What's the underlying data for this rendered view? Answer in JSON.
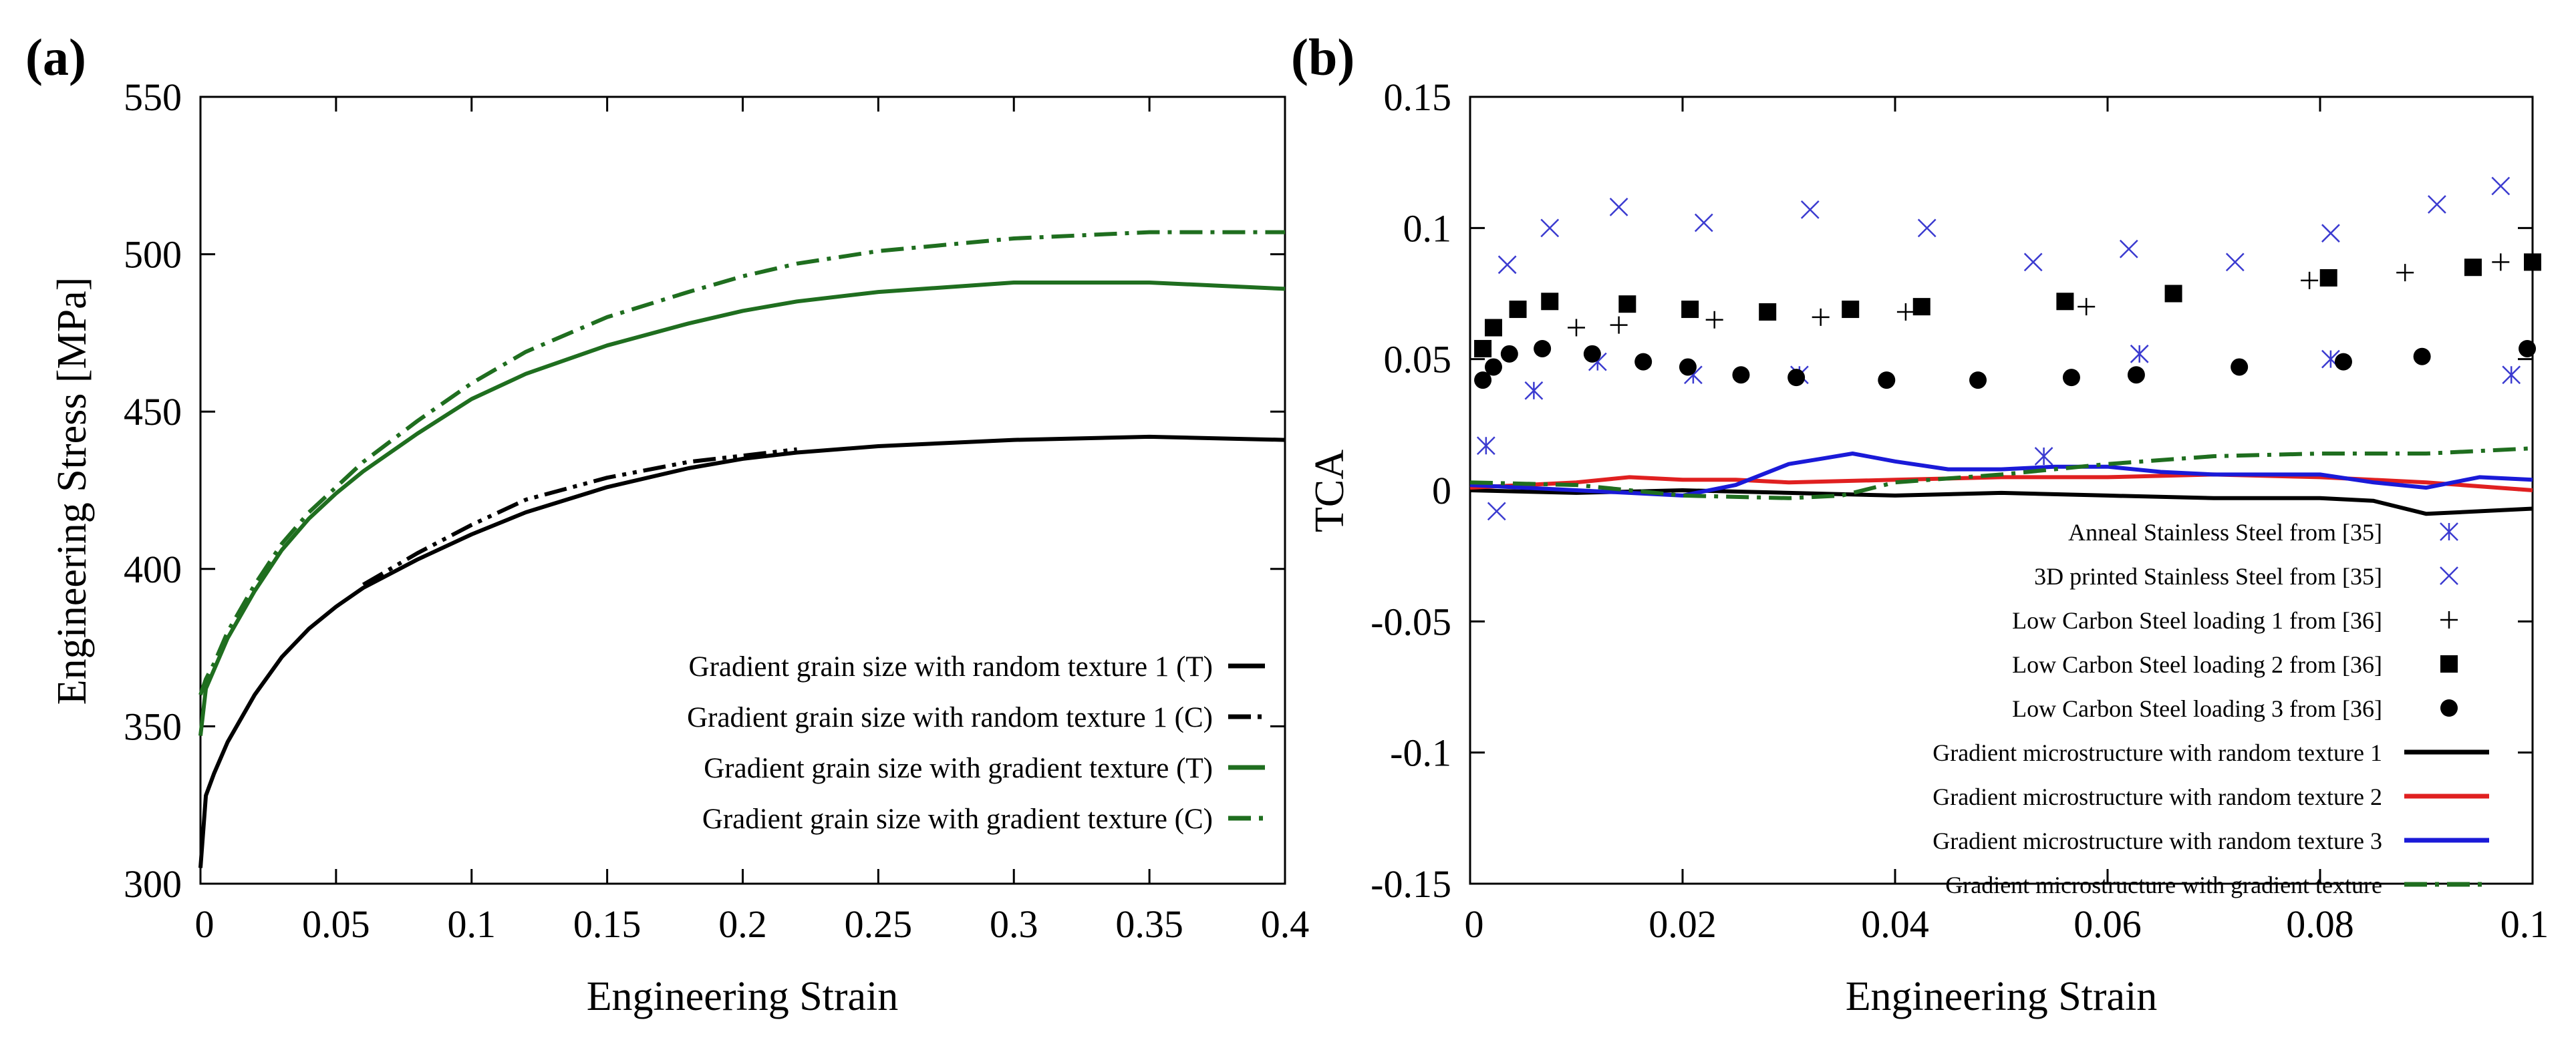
{
  "panels": [
    {
      "label": "(a)"
    },
    {
      "label": "(b)"
    }
  ],
  "chart_data": [
    {
      "type": "line",
      "ylabel": "Engineering Stress [MPa]",
      "xlabel": "Engineering Strain",
      "xlim": [
        0,
        0.4
      ],
      "ylim": [
        300,
        550
      ],
      "xticks": [
        "0",
        "0.05",
        "0.1",
        "0.15",
        "0.2",
        "0.25",
        "0.3",
        "0.35",
        "0.4"
      ],
      "yticks": [
        "300",
        "350",
        "400",
        "450",
        "500",
        "550"
      ],
      "grid": false,
      "legend_position": "bottom-right",
      "series": [
        {
          "name": "Gradient grain size with random texture 1 (T)",
          "color": "#000000",
          "dash": "solid",
          "x": [
            0,
            0.002,
            0.005,
            0.01,
            0.02,
            0.03,
            0.04,
            0.05,
            0.06,
            0.08,
            0.1,
            0.12,
            0.15,
            0.18,
            0.2,
            0.22,
            0.25,
            0.3,
            0.35,
            0.4
          ],
          "y": [
            305,
            328,
            335,
            345,
            360,
            372,
            381,
            388,
            394,
            403,
            411,
            418,
            426,
            432,
            435,
            437,
            439,
            441,
            442,
            441
          ]
        },
        {
          "name": "Gradient grain size with random texture 1 (C)",
          "color": "#000000",
          "dash": "dash-dot-dot",
          "x": [
            0.06,
            0.08,
            0.1,
            0.12,
            0.15,
            0.18,
            0.2,
            0.22
          ],
          "y": [
            395,
            405,
            414,
            422,
            429,
            434,
            436,
            438
          ]
        },
        {
          "name": "Gradient grain size with gradient texture (T)",
          "color": "#1f6e1f",
          "dash": "solid",
          "x": [
            0,
            0.002,
            0.005,
            0.01,
            0.02,
            0.03,
            0.04,
            0.05,
            0.06,
            0.08,
            0.1,
            0.12,
            0.15,
            0.18,
            0.2,
            0.22,
            0.25,
            0.3,
            0.35,
            0.4
          ],
          "y": [
            347,
            362,
            368,
            378,
            393,
            406,
            416,
            424,
            431,
            443,
            454,
            462,
            471,
            478,
            482,
            485,
            488,
            491,
            491,
            489
          ]
        },
        {
          "name": "Gradient grain size with gradient texture (C)",
          "color": "#1f6e1f",
          "dash": "dash-dot",
          "x": [
            0,
            0.002,
            0.005,
            0.01,
            0.02,
            0.03,
            0.04,
            0.05,
            0.06,
            0.08,
            0.1,
            0.12,
            0.15,
            0.18,
            0.2,
            0.22,
            0.25,
            0.3,
            0.35,
            0.4
          ],
          "y": [
            360,
            365,
            370,
            380,
            395,
            408,
            418,
            426,
            434,
            447,
            459,
            469,
            480,
            488,
            493,
            497,
            501,
            505,
            507,
            507
          ]
        }
      ]
    },
    {
      "type": "scatter+line",
      "ylabel": "TCA",
      "xlabel": "Engineering Strain",
      "xlim": [
        0,
        0.1
      ],
      "ylim": [
        -0.15,
        0.15
      ],
      "xticks": [
        "0",
        "0.02",
        "0.04",
        "0.06",
        "0.08",
        "0.1"
      ],
      "yticks": [
        "-0.15",
        "-0.1",
        "-0.05",
        "0",
        "0.05",
        "0.1",
        "0.15"
      ],
      "grid": false,
      "legend_position": "bottom-right",
      "series": [
        {
          "name": "Anneal Stainless Steel from [35]",
          "color": "#3b3bd0",
          "marker": "asterisk",
          "x": [
            0.0015,
            0.006,
            0.012,
            0.021,
            0.031,
            0.054,
            0.063,
            0.081,
            0.098
          ],
          "y": [
            0.017,
            0.038,
            0.049,
            0.044,
            0.044,
            0.013,
            0.052,
            0.05,
            0.044
          ]
        },
        {
          "name": "3D printed Stainless Steel from [35]",
          "color": "#3b3bd0",
          "marker": "x",
          "x": [
            0.0025,
            0.0035,
            0.0075,
            0.014,
            0.022,
            0.032,
            0.043,
            0.053,
            0.062,
            0.072,
            0.081,
            0.091,
            0.097
          ],
          "y": [
            -0.008,
            0.086,
            0.1,
            0.108,
            0.102,
            0.107,
            0.1,
            0.087,
            0.092,
            0.087,
            0.098,
            0.109,
            0.116
          ]
        },
        {
          "name": "Low Carbon Steel loading 1 from [36]",
          "color": "#000000",
          "marker": "plus",
          "x": [
            0.01,
            0.014,
            0.023,
            0.033,
            0.041,
            0.058,
            0.079,
            0.088,
            0.097
          ],
          "y": [
            0.062,
            0.063,
            0.065,
            0.066,
            0.068,
            0.07,
            0.08,
            0.083,
            0.087
          ]
        },
        {
          "name": "Low Carbon Steel loading 2 from [36]",
          "color": "#000000",
          "marker": "square",
          "x": [
            0.0012,
            0.0022,
            0.0045,
            0.0075,
            0.0148,
            0.0207,
            0.028,
            0.0358,
            0.0425,
            0.056,
            0.0662,
            0.0808,
            0.0944,
            0.1
          ],
          "y": [
            0.054,
            0.062,
            0.069,
            0.072,
            0.071,
            0.069,
            0.068,
            0.069,
            0.07,
            0.072,
            0.075,
            0.081,
            0.085,
            0.087
          ]
        },
        {
          "name": "Low Carbon Steel loading 3 from [36]",
          "color": "#000000",
          "marker": "circle",
          "x": [
            0.0012,
            0.0022,
            0.0037,
            0.0068,
            0.0115,
            0.0163,
            0.0205,
            0.0255,
            0.0307,
            0.0392,
            0.0478,
            0.0566,
            0.0627,
            0.0724,
            0.0822,
            0.0896,
            0.0995
          ],
          "y": [
            0.042,
            0.047,
            0.052,
            0.054,
            0.052,
            0.049,
            0.047,
            0.044,
            0.043,
            0.042,
            0.042,
            0.043,
            0.044,
            0.047,
            0.049,
            0.051,
            0.054
          ]
        },
        {
          "name": "Gradient microstructure with random texture 1",
          "color": "#000000",
          "dash": "solid",
          "x": [
            0,
            0.01,
            0.02,
            0.03,
            0.04,
            0.05,
            0.06,
            0.07,
            0.08,
            0.085,
            0.09,
            0.1
          ],
          "y": [
            0.0,
            -0.001,
            0.0,
            -0.001,
            -0.002,
            -0.001,
            -0.002,
            -0.003,
            -0.003,
            -0.004,
            -0.009,
            -0.007
          ]
        },
        {
          "name": "Gradient microstructure with random texture 2",
          "color": "#e02020",
          "dash": "solid",
          "x": [
            0,
            0.01,
            0.015,
            0.02,
            0.025,
            0.03,
            0.04,
            0.05,
            0.06,
            0.07,
            0.08,
            0.09,
            0.1
          ],
          "y": [
            0.001,
            0.003,
            0.005,
            0.004,
            0.004,
            0.003,
            0.004,
            0.005,
            0.005,
            0.006,
            0.005,
            0.003,
            0.0
          ]
        },
        {
          "name": "Gradient microstructure with random texture 3",
          "color": "#1a1ad8",
          "dash": "solid",
          "x": [
            0,
            0.005,
            0.01,
            0.015,
            0.02,
            0.025,
            0.03,
            0.033,
            0.036,
            0.04,
            0.045,
            0.05,
            0.055,
            0.06,
            0.065,
            0.07,
            0.08,
            0.085,
            0.09,
            0.095,
            0.1
          ],
          "y": [
            0.002,
            0.001,
            0.0,
            -0.001,
            -0.002,
            0.002,
            0.01,
            0.012,
            0.014,
            0.011,
            0.008,
            0.008,
            0.009,
            0.009,
            0.007,
            0.006,
            0.006,
            0.003,
            0.001,
            0.005,
            0.004
          ]
        },
        {
          "name": "Gradient microstructure with gradient texture",
          "color": "#1f6e1f",
          "dash": "dash-dot",
          "x": [
            0,
            0.01,
            0.02,
            0.03,
            0.035,
            0.04,
            0.05,
            0.06,
            0.07,
            0.08,
            0.09,
            0.1
          ],
          "y": [
            0.003,
            0.002,
            -0.002,
            -0.003,
            -0.002,
            0.003,
            0.006,
            0.01,
            0.013,
            0.014,
            0.014,
            0.016
          ]
        }
      ]
    }
  ]
}
